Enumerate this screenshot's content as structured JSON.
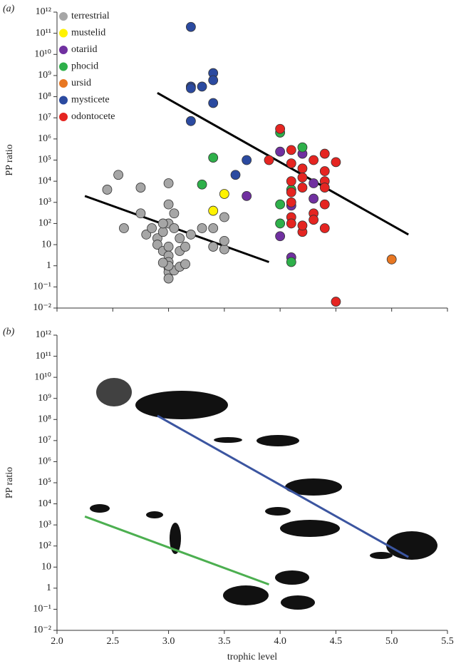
{
  "chart_data": [
    {
      "type": "scatter",
      "label": "(a)",
      "ylabel": "PP ratio",
      "log_y": true,
      "legend": "upper left",
      "xlim": [
        2.0,
        5.5
      ],
      "xticks": [
        2.0,
        2.5,
        3.0,
        3.5,
        4.0,
        4.5,
        5.0,
        5.5
      ],
      "ylim": [
        0.01,
        1000000000000.0
      ],
      "yticks": [
        {
          "value": 1000000000000.0,
          "label": "10¹²"
        },
        {
          "value": 100000000000.0,
          "label": "10¹¹"
        },
        {
          "value": 10000000000.0,
          "label": "10¹⁰"
        },
        {
          "value": 1000000000.0,
          "label": "10⁹"
        },
        {
          "value": 100000000.0,
          "label": "10⁸"
        },
        {
          "value": 10000000.0,
          "label": "10⁷"
        },
        {
          "value": 1000000.0,
          "label": "10⁶"
        },
        {
          "value": 100000.0,
          "label": "10⁵"
        },
        {
          "value": 10000.0,
          "label": "10⁴"
        },
        {
          "value": 1000.0,
          "label": "10³"
        },
        {
          "value": 100,
          "label": "10²"
        },
        10,
        1,
        {
          "value": 0.1,
          "label": "10⁻¹"
        },
        {
          "value": 0.01,
          "label": "10⁻²"
        }
      ],
      "series": [
        {
          "name": "terrestrial",
          "color": "#a6a6a6",
          "x": [
            2.45,
            2.55,
            2.75,
            3.0,
            2.6,
            2.75,
            2.8,
            2.85,
            2.9,
            2.95,
            2.9,
            2.95,
            3.0,
            3.0,
            3.0,
            3.05,
            3.0,
            3.0,
            3.0,
            3.0,
            3.0,
            3.05,
            3.0,
            3.1,
            3.15,
            2.95,
            3.1,
            3.15,
            3.1,
            3.2,
            3.3,
            3.4,
            3.4,
            3.5,
            3.5,
            3.5,
            3.05,
            2.95
          ],
          "values": [
            4000,
            20000,
            5000,
            8000,
            60,
            300,
            30,
            60,
            20,
            40,
            10,
            5,
            8,
            100,
            800,
            300,
            3,
            1.5,
            0.8,
            0.5,
            0.25,
            0.6,
            1,
            0.9,
            1.2,
            1.4,
            5,
            8,
            20,
            30,
            60,
            60,
            8,
            6,
            15,
            200,
            60,
            100
          ]
        },
        {
          "name": "mustelid",
          "color": "#fff200",
          "x": [
            3.5,
            3.4
          ],
          "values": [
            2500,
            400
          ]
        },
        {
          "name": "otariid",
          "color": "#7030a0",
          "x": [
            3.7,
            4.0,
            4.2,
            4.3,
            4.1,
            4.0,
            4.1,
            4.3
          ],
          "values": [
            2000,
            250000,
            200000,
            8000,
            700,
            25,
            2.5,
            1500
          ]
        },
        {
          "name": "phocid",
          "color": "#2eb04a",
          "x": [
            3.4,
            3.3,
            4.0,
            4.2,
            4.1,
            4.0,
            4.0,
            4.1
          ],
          "values": [
            130000,
            7000,
            2000000,
            400000,
            4000,
            800,
            100,
            1.5
          ]
        },
        {
          "name": "ursid",
          "color": "#e87722",
          "x": [
            5.0
          ],
          "values": [
            2
          ]
        },
        {
          "name": "mysticete",
          "color": "#2b4aa0",
          "x": [
            3.2,
            3.2,
            3.2,
            3.3,
            3.4,
            3.4,
            3.4,
            3.2,
            3.6,
            3.7
          ],
          "values": [
            200000000000.0,
            300000000.0,
            250000000.0,
            300000000.0,
            1300000000.0,
            600000000.0,
            50000000.0,
            7000000.0,
            20000,
            100000
          ]
        },
        {
          "name": "odontocete",
          "color": "#e52521",
          "x": [
            3.9,
            4.0,
            4.1,
            4.1,
            4.2,
            4.1,
            4.1,
            4.2,
            4.1,
            4.2,
            4.1,
            4.1,
            4.2,
            4.2,
            4.3,
            4.3,
            4.3,
            4.4,
            4.4,
            4.4,
            4.4,
            4.4,
            4.4,
            4.5,
            4.5
          ],
          "values": [
            100000,
            3000000,
            300000,
            70000,
            40000,
            10000,
            3000,
            15000,
            1000,
            5000,
            200,
            100,
            40,
            80,
            300,
            150,
            100000,
            200000,
            30000,
            10000,
            5000,
            800,
            60,
            80000,
            0.02
          ]
        }
      ],
      "lines": [
        {
          "color": "#000000",
          "x": [
            2.25,
            3.9
          ],
          "values": [
            2000,
            1.5
          ]
        },
        {
          "color": "#000000",
          "x": [
            2.9,
            5.15
          ],
          "values": [
            150000000,
            30
          ]
        }
      ]
    },
    {
      "type": "line",
      "label": "(b)",
      "ylabel": "PP ratio",
      "xlabel": "trophic level",
      "log_y": true,
      "xlim": [
        2.0,
        5.5
      ],
      "xticks": [
        {
          "value": 2.0,
          "label": "2.0"
        },
        {
          "value": 2.5,
          "label": "2.5"
        },
        {
          "value": 3.0,
          "label": "3.0"
        },
        {
          "value": 3.5,
          "label": "3.5"
        },
        {
          "value": 4.0,
          "label": "4.0"
        },
        {
          "value": 4.5,
          "label": "4.5"
        },
        {
          "value": 5.0,
          "label": "5.0"
        },
        {
          "value": 5.5,
          "label": "5.5"
        }
      ],
      "ylim": [
        0.01,
        1000000000000.0
      ],
      "yticks": [
        {
          "value": 1000000000000.0,
          "label": "10¹²"
        },
        {
          "value": 100000000000.0,
          "label": "10¹¹"
        },
        {
          "value": 10000000000.0,
          "label": "10¹⁰"
        },
        {
          "value": 1000000000.0,
          "label": "10⁹"
        },
        {
          "value": 100000000.0,
          "label": "10⁸"
        },
        {
          "value": 10000000.0,
          "label": "10⁷"
        },
        {
          "value": 1000000.0,
          "label": "10⁶"
        },
        {
          "value": 100000.0,
          "label": "10⁵"
        },
        {
          "value": 10000.0,
          "label": "10⁴"
        },
        {
          "value": 1000.0,
          "label": "10³"
        },
        {
          "value": 100,
          "label": "10²"
        },
        10,
        1,
        {
          "value": 0.1,
          "label": "10⁻¹"
        },
        {
          "value": 0.01,
          "label": "10⁻²"
        }
      ],
      "lines": [
        {
          "color": "#3b55a0",
          "x": [
            2.9,
            5.15
          ],
          "values": [
            150000000,
            30
          ]
        },
        {
          "color": "#4caf50",
          "x": [
            2.25,
            3.9
          ],
          "values": [
            2500,
            1.5
          ]
        }
      ]
    }
  ]
}
